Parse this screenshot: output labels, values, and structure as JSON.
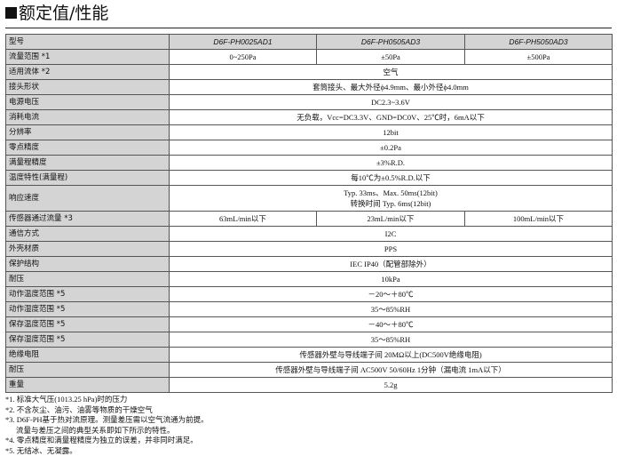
{
  "title": "额定值/性能",
  "header": {
    "label": "型号",
    "models": [
      "D6F-PH0025AD1",
      "D6F-PH0505AD3",
      "D6F-PH5050AD3"
    ]
  },
  "rows": [
    {
      "label": "流量范围 *1",
      "values": [
        "0~250Pa",
        "±50Pa",
        "±500Pa"
      ]
    },
    {
      "label": "适用流体 *2",
      "values": [
        "空气"
      ]
    },
    {
      "label": "接头形状",
      "values": [
        "套筒接头、最大外径ϕ4.9mm、最小外径ϕ4.0mm"
      ]
    },
    {
      "label": "电源电压",
      "values": [
        "DC2.3~3.6V"
      ]
    },
    {
      "label": "消耗电流",
      "values": [
        "无负载，Vcc=DC3.3V、GND=DC0V、25℃时，6mA以下"
      ]
    },
    {
      "label": "分辨率",
      "values": [
        "12bit"
      ]
    },
    {
      "label": "零点精度",
      "values": [
        "±0.2Pa"
      ]
    },
    {
      "label": "满量程精度",
      "values": [
        "±3%R.D."
      ]
    },
    {
      "label": "温度特性(满量程)",
      "values": [
        "每10℃为±0.5%R.D.以下"
      ]
    },
    {
      "label": "响应速度",
      "values": [
        "Typ. 33ms、Max. 50ms(12bit)"
      ],
      "second_line": "转换时间 Typ. 6ms(12bit)"
    },
    {
      "label": "传感器通过流量 *3",
      "values": [
        "63mL/min以下",
        "23mL/min以下",
        "100mL/min以下"
      ]
    },
    {
      "label": "通信方式",
      "values": [
        "I2C"
      ]
    },
    {
      "label": "外壳材质",
      "values": [
        "PPS"
      ]
    },
    {
      "label": "保护结构",
      "values": [
        "IEC IP40（配管部除外）"
      ]
    },
    {
      "label": "耐压",
      "values": [
        "10kPa"
      ]
    },
    {
      "label": "动作温度范围 *5",
      "values": [
        "－20～＋80℃"
      ]
    },
    {
      "label": "动作湿度范围 *5",
      "values": [
        "35～85%RH"
      ]
    },
    {
      "label": "保存温度范围 *5",
      "values": [
        "－40～＋80℃"
      ]
    },
    {
      "label": "保存湿度范围 *5",
      "values": [
        "35～85%RH"
      ]
    },
    {
      "label": "绝缘电阻",
      "values": [
        "传感器外壁与导线端子间 20MΩ以上(DC500V绝缘电阻)"
      ]
    },
    {
      "label": "耐压",
      "values": [
        "传感器外壁与导线端子间 AC500V 50/60Hz 1分钟（漏电流 1mA以下）"
      ]
    },
    {
      "label": "重量",
      "values": [
        "5.2g"
      ]
    }
  ],
  "notes": [
    "*1. 标准大气压(1013.25 hPa)时的压力",
    "*2. 不含灰尘、油污、油雾等物质的干燥空气",
    "*3. D6F-PH基于热对流原理。测量差压需以空气流通为前提。",
    "流量与差压之间的典型关系即如下所示的特性。",
    "*4. 零点精度和满量程精度为独立的误差，并非同时满足。",
    "*5. 无结冰、无凝露。"
  ]
}
